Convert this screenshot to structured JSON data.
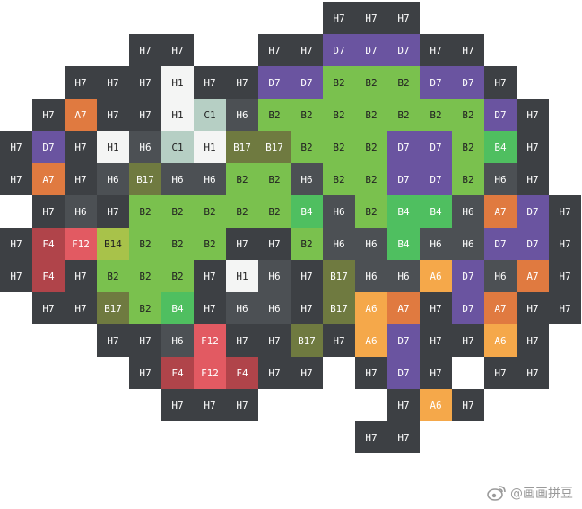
{
  "palette": {
    "H7": {
      "bg": "#3d4044",
      "fg": "#ffffff"
    },
    "H6": {
      "bg": "#4c5054",
      "fg": "#ffffff"
    },
    "H1": {
      "bg": "#f4f5f4",
      "fg": "#222222"
    },
    "C1": {
      "bg": "#b6cfc4",
      "fg": "#222222"
    },
    "D7": {
      "bg": "#6a54a0",
      "fg": "#ffffff"
    },
    "A7": {
      "bg": "#e07a40",
      "fg": "#ffffff"
    },
    "A6": {
      "bg": "#f5a84a",
      "fg": "#ffffff"
    },
    "F4": {
      "bg": "#b0444a",
      "fg": "#ffffff"
    },
    "F12": {
      "bg": "#e25a62",
      "fg": "#ffffff"
    },
    "B2": {
      "bg": "#7ac14e",
      "fg": "#222222"
    },
    "B4": {
      "bg": "#4fbf60",
      "fg": "#ffffff"
    },
    "B14": {
      "bg": "#a8c24a",
      "fg": "#222222"
    },
    "B17": {
      "bg": "#6f7a40",
      "fg": "#ffffff"
    }
  },
  "grid": [
    "          H7 H7 H7        ",
    "    H7 H7    H7 H7 D7 D7 D7 H7 H7  ",
    "  H7 H7 H7 H1 H7 H7 D7 D7 B2 B2 B2 D7 D7 H7 ",
    " H7 A7 H7 H7 H1 C1 H6 B2 B2 B2 B2 B2 B2 B2 D7 H7 ",
    "H7 D7 H7 H1 H6 C1 H1 B17 B17 B2 B2 B2 D7 D7 B2 B4 H7 ",
    "H7 A7 H7 H6 B17 H6 H6 B2 B2 H6 B2 B2 D7 D7 B2 H6 H7 ",
    " H7 H6 H7 B2 B2 B2 B2 B2 B4 H6 B2 B4 B4 H6 A7 D7 H7",
    "H7 F4 F12 B14 B2 B2 B2 H7 H7 B2 H6 H6 B4 H6 H6 D7 D7 H7",
    "H7 F4 H7 B2 B2 B2 H7 H1 H6 H7 B17 H6 H6 A6 D7 H6 A7 H7",
    " H7 H7 B17 B2 B4 H7 H6 H6 H7 B17 A6 A7 H7 D7 A7 H7 H7",
    "   H7 H7 H6 F12 H7 H7 B17 H7 A6 D7 H7 H7 A6 H7 ",
    "    H7 F4 F12 F4 H7 H7  H7 D7 H7  H7 H7 ",
    "     H7 H7 H7      H7 A6 H7    ",
    "          H7 H7       "
  ],
  "watermark": {
    "text": "@画画拼豆",
    "logo_icon": "weibo-logo-icon"
  }
}
